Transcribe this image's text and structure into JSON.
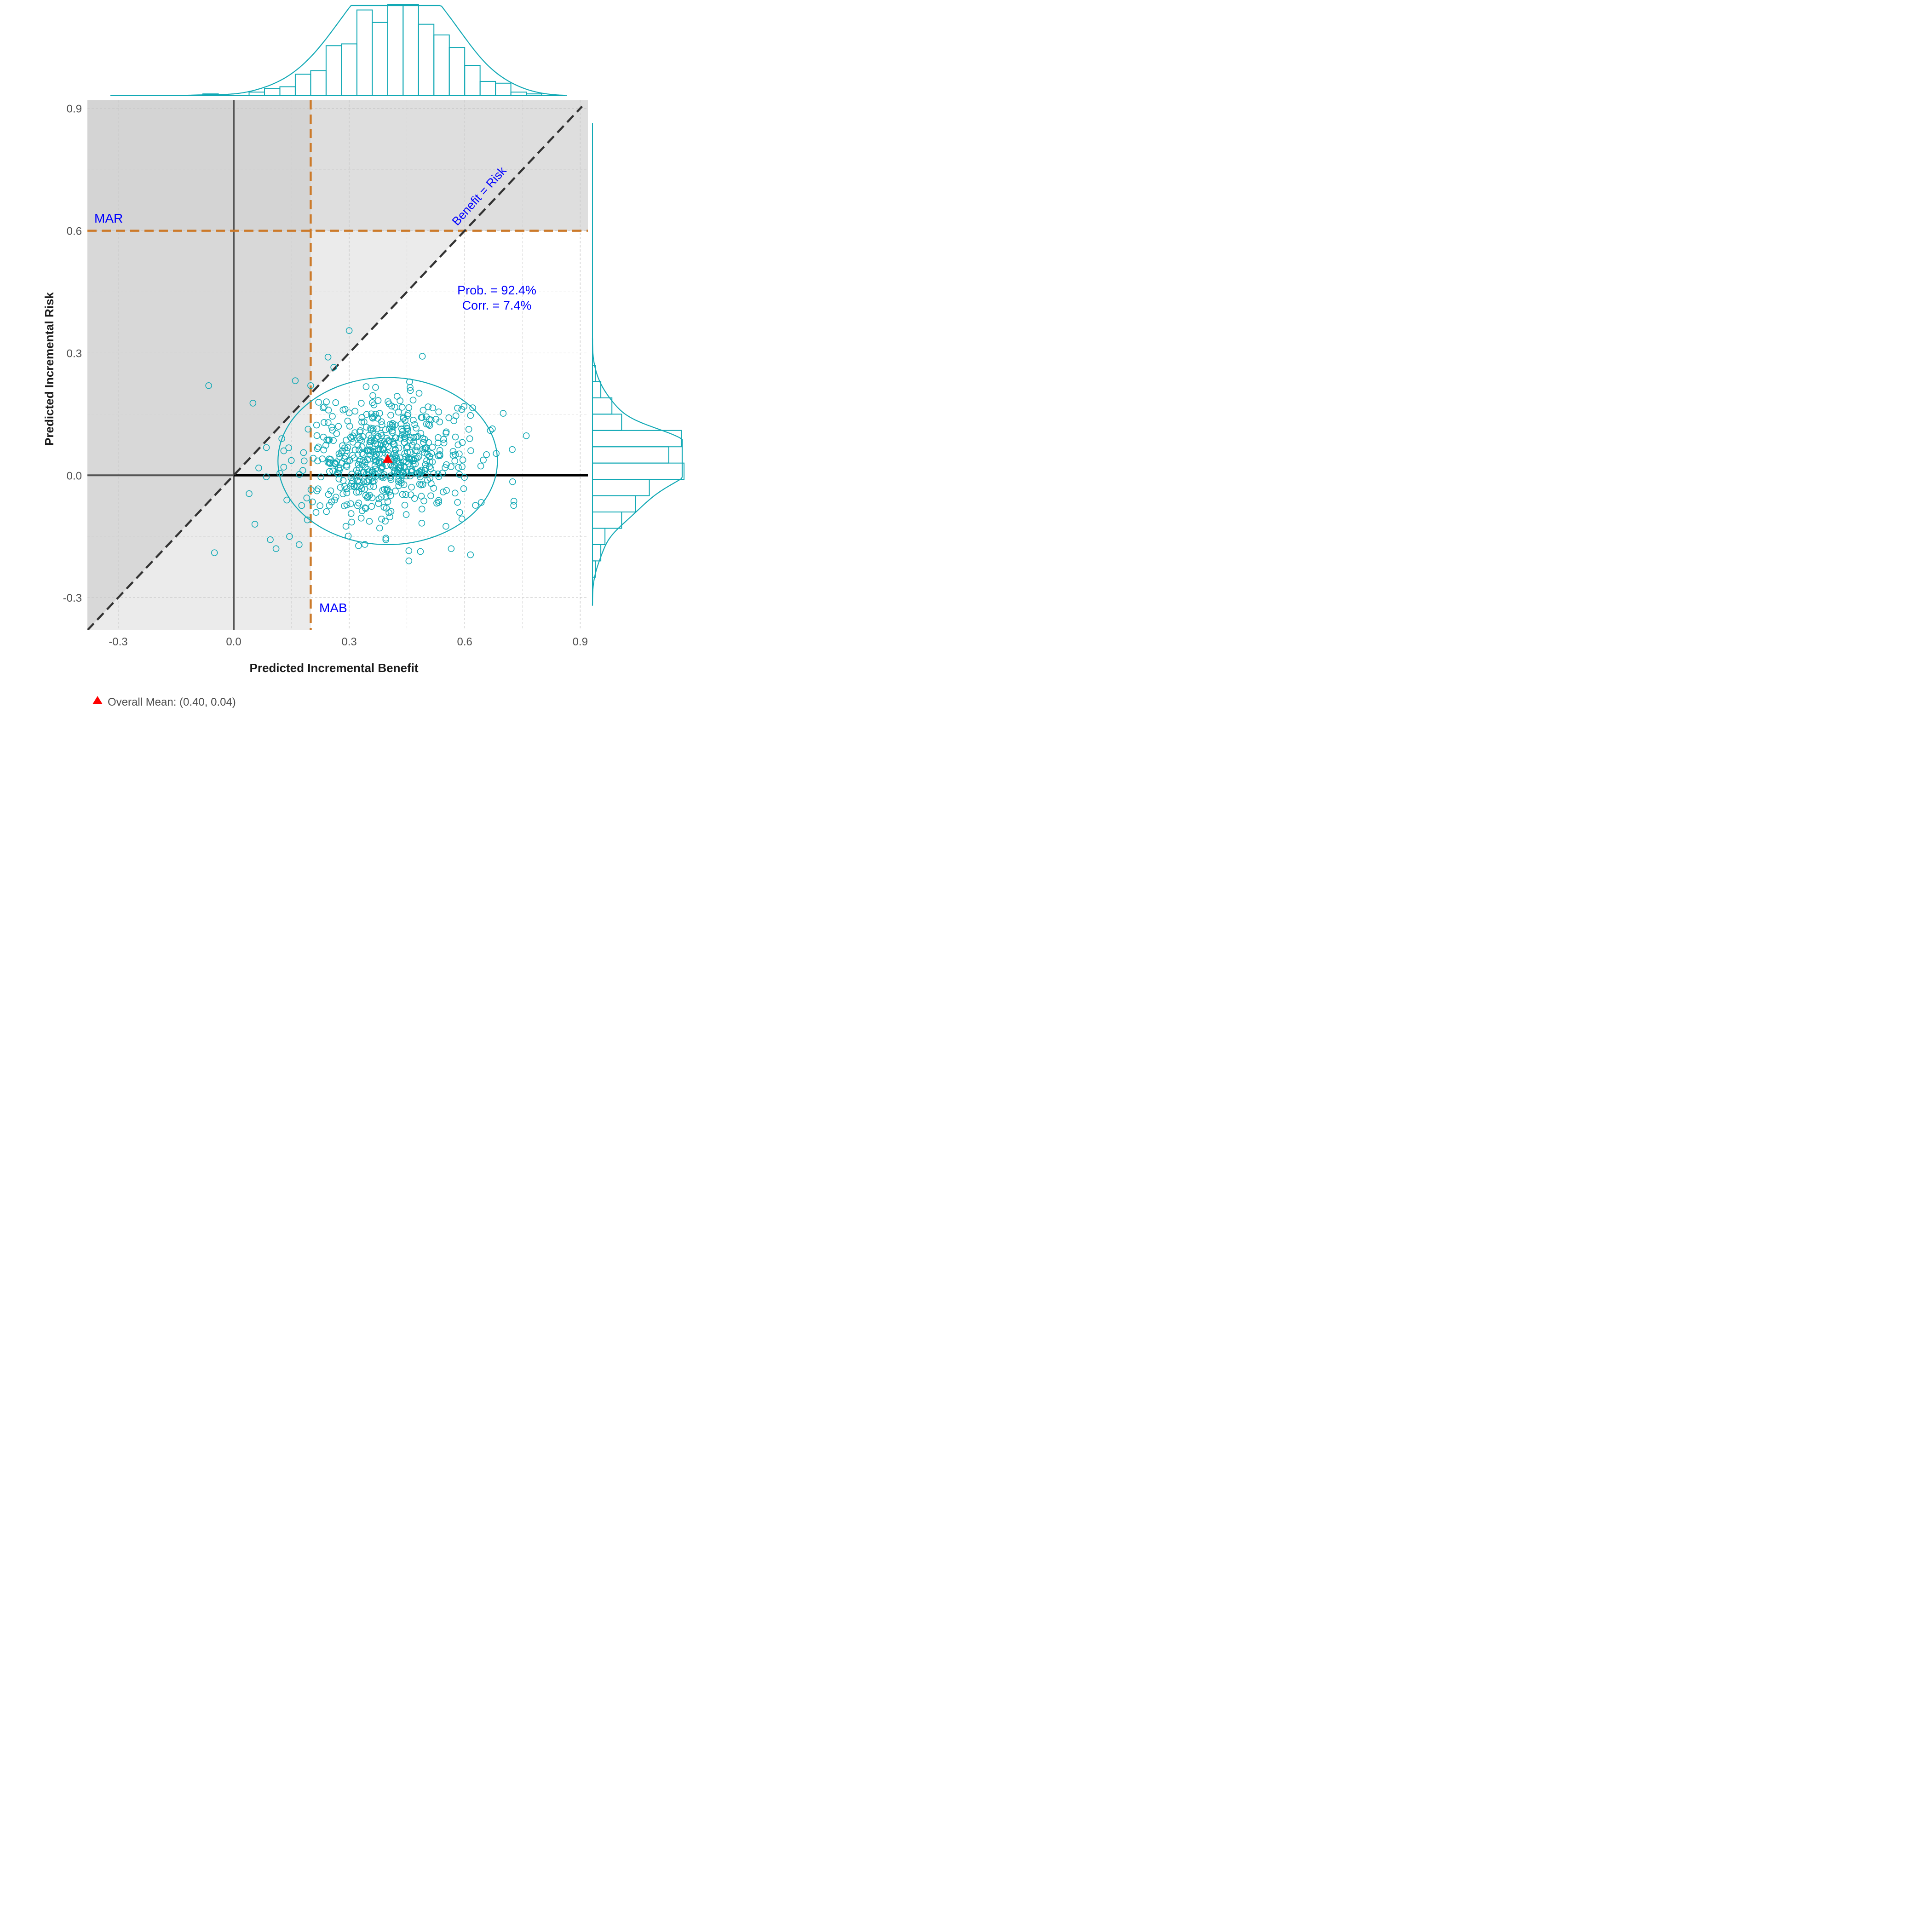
{
  "chart_data": {
    "type": "scatter",
    "xlabel": "Predicted Incremental Benefit",
    "ylabel": "Predicted Incremental Risk",
    "xlim": [
      -0.38,
      0.92
    ],
    "ylim": [
      -0.38,
      0.92
    ],
    "x_ticks": [
      -0.3,
      0.0,
      0.3,
      0.6,
      0.9
    ],
    "y_ticks": [
      -0.3,
      0.0,
      0.3,
      0.6,
      0.9
    ],
    "x_tick_labels": [
      "-0.3",
      "0.0",
      "0.3",
      "0.6",
      "0.9"
    ],
    "y_tick_labels": [
      "-0.3",
      "0.0",
      "0.3",
      "0.6",
      "0.9"
    ],
    "mab": 0.2,
    "mar": 0.6,
    "annotations": {
      "mar_label": "MAR",
      "mab_label": "MAB",
      "diagonal_label": "Benefit = Risk",
      "prob_text": "Prob. = 92.4%",
      "corr_text": "Corr. = 7.4%"
    },
    "mean": {
      "x": 0.4,
      "y": 0.04
    },
    "legend_text": "Overall Mean: (0.40, 0.04)",
    "ellipse": {
      "cx": 0.4,
      "cy": 0.035,
      "rx": 0.285,
      "ry": 0.205
    },
    "points_seed": 7,
    "points_count": 560,
    "outliers": [
      {
        "x": 0.3,
        "y": 0.355
      },
      {
        "x": -0.065,
        "y": 0.22
      },
      {
        "x": 0.05,
        "y": 0.177
      },
      {
        "x": 0.16,
        "y": 0.232
      },
      {
        "x": 0.2,
        "y": 0.22
      },
      {
        "x": 0.245,
        "y": 0.29
      },
      {
        "x": 0.26,
        "y": 0.265
      },
      {
        "x": 0.49,
        "y": 0.292
      },
      {
        "x": -0.05,
        "y": -0.19
      },
      {
        "x": 0.04,
        "y": -0.045
      },
      {
        "x": 0.055,
        "y": -0.12
      },
      {
        "x": 0.095,
        "y": -0.158
      },
      {
        "x": 0.11,
        "y": -0.18
      },
      {
        "x": 0.145,
        "y": -0.15
      },
      {
        "x": 0.17,
        "y": -0.17
      },
      {
        "x": 0.455,
        "y": -0.21
      },
      {
        "x": 0.455,
        "y": -0.185
      },
      {
        "x": 0.485,
        "y": -0.187
      },
      {
        "x": 0.565,
        "y": -0.18
      },
      {
        "x": 0.615,
        "y": -0.195
      },
      {
        "x": 0.76,
        "y": 0.097
      },
      {
        "x": 0.7,
        "y": 0.152
      },
      {
        "x": 0.085,
        "y": 0.068
      },
      {
        "x": 0.065,
        "y": 0.018
      },
      {
        "x": 0.12,
        "y": 0.005
      },
      {
        "x": 0.13,
        "y": 0.02
      },
      {
        "x": 0.13,
        "y": 0.06
      },
      {
        "x": 0.125,
        "y": 0.09
      }
    ],
    "top_histogram": {
      "bins": [
        -0.08,
        -0.04,
        0.0,
        0.04,
        0.08,
        0.12,
        0.16,
        0.2,
        0.24,
        0.28,
        0.32,
        0.36,
        0.4,
        0.44,
        0.48,
        0.52,
        0.56,
        0.6,
        0.64,
        0.68,
        0.72,
        0.76,
        0.8
      ],
      "counts": [
        1,
        0,
        0,
        2,
        4,
        5,
        12,
        14,
        28,
        29,
        48,
        41,
        51,
        51,
        40,
        34,
        27,
        17,
        8,
        7,
        2,
        1
      ]
    },
    "right_histogram": {
      "bins": [
        -0.25,
        -0.21,
        -0.17,
        -0.13,
        -0.09,
        -0.05,
        -0.01,
        0.03,
        0.07,
        0.11,
        0.15,
        0.19,
        0.23,
        0.27
      ],
      "counts": [
        2,
        6,
        9,
        21,
        31,
        41,
        66,
        55,
        64,
        21,
        14,
        6,
        2
      ]
    },
    "colors": {
      "series": "#12a9b5",
      "mean": "#ff0000",
      "annotation": "#0000ff",
      "threshold": "#cc7a2a",
      "panel": "#ebebeb",
      "shade_dark": "#d4d4d4",
      "shade_mid": "#dedede"
    }
  }
}
